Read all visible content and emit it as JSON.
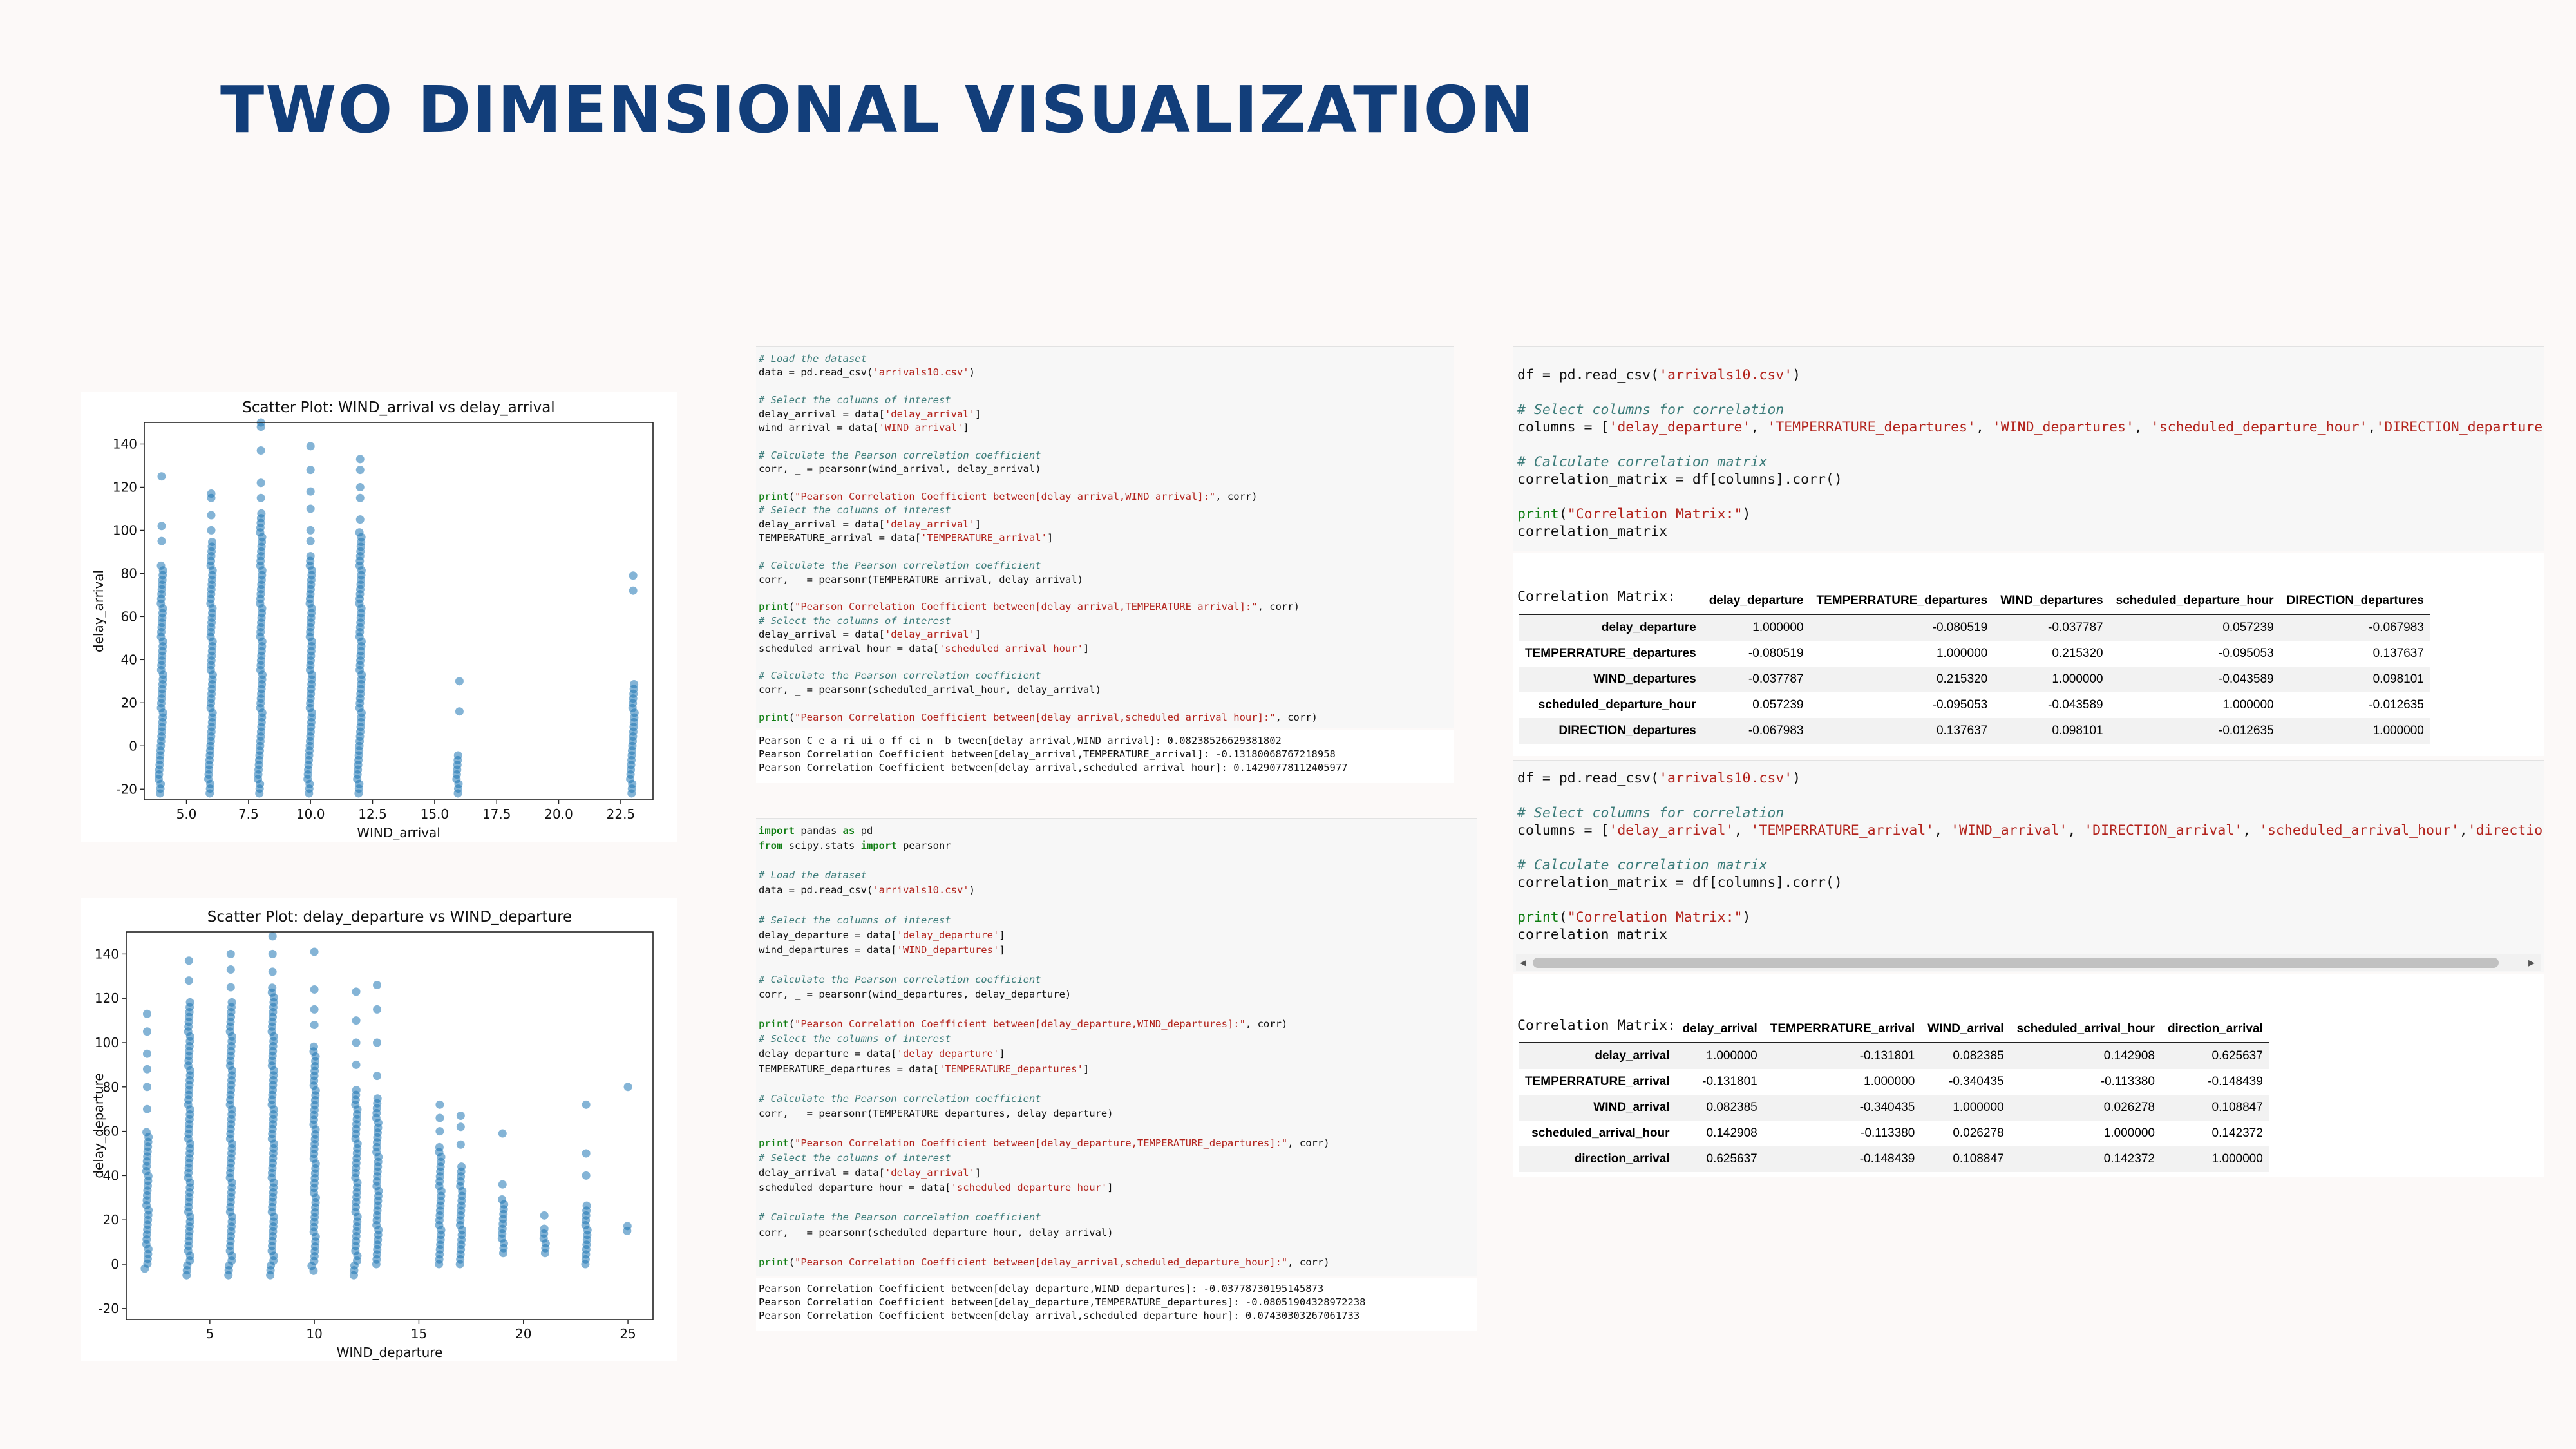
{
  "slide": {
    "title": "TWO DIMENSIONAL VISUALIZATION"
  },
  "colors": {
    "title": "#123e7a",
    "point": "#1f77b4",
    "comment": "#3c7c7a",
    "string": "#b3241d",
    "keyword": "#0f7d12"
  },
  "chart_data": [
    {
      "type": "scatter",
      "title": "Scatter Plot: WIND_arrival vs delay_arrival",
      "xlabel": "WIND_arrival",
      "ylabel": "delay_arrival",
      "xlim": [
        3.3,
        23.8
      ],
      "ylim": [
        -25,
        150
      ],
      "xticks": [
        "5.0",
        "7.5",
        "10.0",
        "12.5",
        "15.0",
        "17.5",
        "20.0",
        "22.5"
      ],
      "xtick_values": [
        5,
        7.5,
        10,
        12.5,
        15,
        17.5,
        20,
        22.5
      ],
      "yticks": [
        "-20",
        "0",
        "20",
        "40",
        "60",
        "80",
        "100",
        "120",
        "140"
      ],
      "ytick_values": [
        -20,
        0,
        20,
        40,
        60,
        80,
        100,
        120,
        140
      ],
      "columns": [
        {
          "x": 4,
          "ymin": -22,
          "ymax": 85,
          "extra": [
            95,
            102,
            125
          ]
        },
        {
          "x": 6,
          "ymin": -22,
          "ymax": 95,
          "extra": [
            100,
            107,
            115,
            117
          ]
        },
        {
          "x": 8,
          "ymin": -22,
          "ymax": 110,
          "extra": [
            115,
            122,
            137,
            148,
            150
          ]
        },
        {
          "x": 10,
          "ymin": -22,
          "ymax": 90,
          "extra": [
            95,
            100,
            110,
            118,
            128,
            139
          ]
        },
        {
          "x": 12,
          "ymin": -22,
          "ymax": 100,
          "extra": [
            105,
            115,
            120,
            128,
            133
          ]
        },
        {
          "x": 16,
          "ymin": -22,
          "ymax": -3,
          "extra": [
            16,
            30
          ]
        },
        {
          "x": 23,
          "ymin": -22,
          "ymax": 30,
          "extra": [
            72,
            79
          ]
        }
      ]
    },
    {
      "type": "scatter",
      "title": "Scatter Plot: delay_departure vs WIND_departure",
      "xlabel": "WIND_departure",
      "ylabel": "delay_departure",
      "xlim": [
        1,
        26.2
      ],
      "ylim": [
        -25,
        150
      ],
      "xticks": [
        "5",
        "10",
        "15",
        "20",
        "25"
      ],
      "xtick_values": [
        5,
        10,
        15,
        20,
        25
      ],
      "yticks": [
        "-20",
        "0",
        "20",
        "40",
        "60",
        "80",
        "100",
        "120",
        "140"
      ],
      "ytick_values": [
        -20,
        0,
        20,
        40,
        60,
        80,
        100,
        120,
        140
      ],
      "columns": [
        {
          "x": 2,
          "ymin": -2,
          "ymax": 60,
          "extra": [
            70,
            80,
            88,
            95,
            105,
            113
          ]
        },
        {
          "x": 4,
          "ymin": -5,
          "ymax": 120,
          "extra": [
            128,
            137
          ]
        },
        {
          "x": 6,
          "ymin": -5,
          "ymax": 120,
          "extra": [
            125,
            133,
            140
          ]
        },
        {
          "x": 8,
          "ymin": -5,
          "ymax": 125,
          "extra": [
            132,
            140,
            148
          ]
        },
        {
          "x": 10,
          "ymin": -3,
          "ymax": 100,
          "extra": [
            108,
            115,
            124,
            141
          ]
        },
        {
          "x": 12,
          "ymin": -5,
          "ymax": 80,
          "extra": [
            90,
            100,
            110,
            123
          ]
        },
        {
          "x": 13,
          "ymin": 0,
          "ymax": 75,
          "extra": [
            85,
            100,
            115,
            126
          ]
        },
        {
          "x": 16,
          "ymin": 0,
          "ymax": 55,
          "extra": [
            60,
            66,
            72
          ]
        },
        {
          "x": 17,
          "ymin": 0,
          "ymax": 45,
          "extra": [
            54,
            62,
            67
          ]
        },
        {
          "x": 19,
          "ymin": 5,
          "ymax": 30,
          "extra": [
            36,
            59
          ]
        },
        {
          "x": 21,
          "ymin": 5,
          "ymax": 18,
          "extra": [
            22
          ]
        },
        {
          "x": 23,
          "ymin": 0,
          "ymax": 28,
          "extra": [
            40,
            50,
            72
          ]
        },
        {
          "x": 25,
          "ymin": 15,
          "ymax": 18,
          "extra": [
            80
          ]
        }
      ]
    }
  ],
  "code_cell_1": {
    "lines": [
      [
        {
          "t": "# Load the dataset",
          "c": "cm"
        }
      ],
      [
        {
          "t": "data = pd.read_csv("
        },
        {
          "t": "'arrivals10.csv'",
          "c": "str"
        },
        {
          "t": ")"
        }
      ],
      [
        {
          "t": ""
        }
      ],
      [
        {
          "t": "# Select the columns of interest",
          "c": "cm"
        }
      ],
      [
        {
          "t": "delay_arrival = data["
        },
        {
          "t": "'delay_arrival'",
          "c": "str"
        },
        {
          "t": "]"
        }
      ],
      [
        {
          "t": "wind_arrival = data["
        },
        {
          "t": "'WIND_arrival'",
          "c": "str"
        },
        {
          "t": "]"
        }
      ],
      [
        {
          "t": ""
        }
      ],
      [
        {
          "t": "# Calculate the Pearson correlation coefficient",
          "c": "cm"
        }
      ],
      [
        {
          "t": "corr, _ = pearsonr(wind_arrival, delay_arrival)"
        }
      ],
      [
        {
          "t": ""
        }
      ],
      [
        {
          "t": "print",
          "c": "fn"
        },
        {
          "t": "("
        },
        {
          "t": "\"Pearson Correlation Coefficient between[delay_arrival,WIND_arrival]:\"",
          "c": "str"
        },
        {
          "t": ", corr)"
        }
      ],
      [
        {
          "t": "# Select the columns of interest",
          "c": "cm"
        }
      ],
      [
        {
          "t": "delay_arrival = data["
        },
        {
          "t": "'delay_arrival'",
          "c": "str"
        },
        {
          "t": "]"
        }
      ],
      [
        {
          "t": "TEMPERATURE_arrival = data["
        },
        {
          "t": "'TEMPERATURE_arrival'",
          "c": "str"
        },
        {
          "t": "]"
        }
      ],
      [
        {
          "t": ""
        }
      ],
      [
        {
          "t": "# Calculate the Pearson correlation coefficient",
          "c": "cm"
        }
      ],
      [
        {
          "t": "corr, _ = pearsonr(TEMPERATURE_arrival, delay_arrival)"
        }
      ],
      [
        {
          "t": ""
        }
      ],
      [
        {
          "t": "print",
          "c": "fn"
        },
        {
          "t": "("
        },
        {
          "t": "\"Pearson Correlation Coefficient between[delay_arrival,TEMPERATURE_arrival]:\"",
          "c": "str"
        },
        {
          "t": ", corr)"
        }
      ],
      [
        {
          "t": "# Select the columns of interest",
          "c": "cm"
        }
      ],
      [
        {
          "t": "delay_arrival = data["
        },
        {
          "t": "'delay_arrival'",
          "c": "str"
        },
        {
          "t": "]"
        }
      ],
      [
        {
          "t": "scheduled_arrival_hour = data["
        },
        {
          "t": "'scheduled_arrival_hour'",
          "c": "str"
        },
        {
          "t": "]"
        }
      ],
      [
        {
          "t": ""
        }
      ],
      [
        {
          "t": "# Calculate the Pearson correlation coefficient",
          "c": "cm"
        }
      ],
      [
        {
          "t": "corr, _ = pearsonr(scheduled_arrival_hour, delay_arrival)"
        }
      ],
      [
        {
          "t": ""
        }
      ],
      [
        {
          "t": "print",
          "c": "fn"
        },
        {
          "t": "("
        },
        {
          "t": "\"Pearson Correlation Coefficient between[delay_arrival,scheduled_arrival_hour]:\"",
          "c": "str"
        },
        {
          "t": ", corr)"
        }
      ]
    ],
    "output": [
      "Pearson C e a ri ui o ff ci n  b tween[delay_arrival,WIND_arrival]: 0.08238526629381802",
      "Pearson Correlation Coefficient between[delay_arrival,TEMPERATURE_arrival]: -0.13180068767218958",
      "Pearson Correlation Coefficient between[delay_arrival,scheduled_arrival_hour]: 0.14290778112405977"
    ]
  },
  "code_cell_2": {
    "lines": [
      [
        {
          "t": "import",
          "c": "kw"
        },
        {
          "t": " pandas "
        },
        {
          "t": "as",
          "c": "kw"
        },
        {
          "t": " pd"
        }
      ],
      [
        {
          "t": "from",
          "c": "kw"
        },
        {
          "t": " scipy.stats "
        },
        {
          "t": "import",
          "c": "kw"
        },
        {
          "t": " pearsonr"
        }
      ],
      [
        {
          "t": ""
        }
      ],
      [
        {
          "t": "# Load the dataset",
          "c": "cm"
        }
      ],
      [
        {
          "t": "data = pd.read_csv("
        },
        {
          "t": "'arrivals10.csv'",
          "c": "str"
        },
        {
          "t": ")"
        }
      ],
      [
        {
          "t": ""
        }
      ],
      [
        {
          "t": "# Select the columns of interest",
          "c": "cm"
        }
      ],
      [
        {
          "t": "delay_departure = data["
        },
        {
          "t": "'delay_departure'",
          "c": "str"
        },
        {
          "t": "]"
        }
      ],
      [
        {
          "t": "wind_departures = data["
        },
        {
          "t": "'WIND_departures'",
          "c": "str"
        },
        {
          "t": "]"
        }
      ],
      [
        {
          "t": ""
        }
      ],
      [
        {
          "t": "# Calculate the Pearson correlation coefficient",
          "c": "cm"
        }
      ],
      [
        {
          "t": "corr, _ = pearsonr(wind_departures, delay_departure)"
        }
      ],
      [
        {
          "t": ""
        }
      ],
      [
        {
          "t": "print",
          "c": "fn"
        },
        {
          "t": "("
        },
        {
          "t": "\"Pearson Correlation Coefficient between[delay_departure,WIND_departures]:\"",
          "c": "str"
        },
        {
          "t": ", corr)"
        }
      ],
      [
        {
          "t": "# Select the columns of interest",
          "c": "cm"
        }
      ],
      [
        {
          "t": "delay_departure = data["
        },
        {
          "t": "'delay_departure'",
          "c": "str"
        },
        {
          "t": "]"
        }
      ],
      [
        {
          "t": "TEMPERATURE_departures = data["
        },
        {
          "t": "'TEMPERATURE_departures'",
          "c": "str"
        },
        {
          "t": "]"
        }
      ],
      [
        {
          "t": ""
        }
      ],
      [
        {
          "t": "# Calculate the Pearson correlation coefficient",
          "c": "cm"
        }
      ],
      [
        {
          "t": "corr, _ = pearsonr(TEMPERATURE_departures, delay_departure)"
        }
      ],
      [
        {
          "t": ""
        }
      ],
      [
        {
          "t": "print",
          "c": "fn"
        },
        {
          "t": "("
        },
        {
          "t": "\"Pearson Correlation Coefficient between[delay_departure,TEMPERATURE_departures]:\"",
          "c": "str"
        },
        {
          "t": ", corr)"
        }
      ],
      [
        {
          "t": "# Select the columns of interest",
          "c": "cm"
        }
      ],
      [
        {
          "t": "delay_arrival = data["
        },
        {
          "t": "'delay_arrival'",
          "c": "str"
        },
        {
          "t": "]"
        }
      ],
      [
        {
          "t": "scheduled_departure_hour = data["
        },
        {
          "t": "'scheduled_departure_hour'",
          "c": "str"
        },
        {
          "t": "]"
        }
      ],
      [
        {
          "t": ""
        }
      ],
      [
        {
          "t": "# Calculate the Pearson correlation coefficient",
          "c": "cm"
        }
      ],
      [
        {
          "t": "corr, _ = pearsonr(scheduled_departure_hour, delay_arrival)"
        }
      ],
      [
        {
          "t": ""
        }
      ],
      [
        {
          "t": "print",
          "c": "fn"
        },
        {
          "t": "("
        },
        {
          "t": "\"Pearson Correlation Coefficient between[delay_arrival,scheduled_departure_hour]:\"",
          "c": "str"
        },
        {
          "t": ", corr)"
        }
      ]
    ],
    "output": [
      "Pearson Correlation Coefficient between[delay_departure,WIND_departures]: -0.03778730195145873",
      "Pearson Correlation Coefficient between[delay_departure,TEMPERATURE_departures]: -0.08051904328972238",
      "Pearson Correlation Coefficient between[delay_arrival,scheduled_departure_hour]: 0.07430303267061733"
    ]
  },
  "code_cell_3": {
    "lines": [
      [
        {
          "t": "df = pd.read_csv("
        },
        {
          "t": "'arrivals10.csv'",
          "c": "str"
        },
        {
          "t": ")"
        }
      ],
      [
        {
          "t": ""
        }
      ],
      [
        {
          "t": "# Select columns for correlation",
          "c": "cm"
        }
      ],
      [
        {
          "t": "columns = ["
        },
        {
          "t": "'delay_departure'",
          "c": "str"
        },
        {
          "t": ", "
        },
        {
          "t": "'TEMPERRATURE_departures'",
          "c": "str"
        },
        {
          "t": ", "
        },
        {
          "t": "'WIND_departures'",
          "c": "str"
        },
        {
          "t": ", "
        },
        {
          "t": "'scheduled_departure_hour'",
          "c": "str"
        },
        {
          "t": ","
        },
        {
          "t": "'DIRECTION_departures'",
          "c": "str"
        },
        {
          "t": "]"
        }
      ],
      [
        {
          "t": ""
        }
      ],
      [
        {
          "t": "# Calculate correlation matrix",
          "c": "cm"
        }
      ],
      [
        {
          "t": "correlation_matrix = df[columns].corr()"
        }
      ],
      [
        {
          "t": ""
        }
      ],
      [
        {
          "t": "print",
          "c": "fn"
        },
        {
          "t": "("
        },
        {
          "t": "\"Correlation Matrix:\"",
          "c": "str"
        },
        {
          "t": ")"
        }
      ],
      [
        {
          "t": "correlation_matrix"
        }
      ]
    ],
    "output_label": "Correlation Matrix:"
  },
  "table_1": {
    "headers": [
      "",
      "delay_departure",
      "TEMPERRATURE_departures",
      "WIND_departures",
      "scheduled_departure_hour",
      "DIRECTION_departures"
    ],
    "rows": [
      [
        "delay_departure",
        "1.000000",
        "-0.080519",
        "-0.037787",
        "0.057239",
        "-0.067983"
      ],
      [
        "TEMPERRATURE_departures",
        "-0.080519",
        "1.000000",
        "0.215320",
        "-0.095053",
        "0.137637"
      ],
      [
        "WIND_departures",
        "-0.037787",
        "0.215320",
        "1.000000",
        "-0.043589",
        "0.098101"
      ],
      [
        "scheduled_departure_hour",
        "0.057239",
        "-0.095053",
        "-0.043589",
        "1.000000",
        "-0.012635"
      ],
      [
        "DIRECTION_departures",
        "-0.067983",
        "0.137637",
        "0.098101",
        "-0.012635",
        "1.000000"
      ]
    ]
  },
  "code_cell_4": {
    "lines": [
      [
        {
          "t": "df = pd.read_csv("
        },
        {
          "t": "'arrivals10.csv'",
          "c": "str"
        },
        {
          "t": ")"
        }
      ],
      [
        {
          "t": ""
        }
      ],
      [
        {
          "t": "# Select columns for correlation",
          "c": "cm"
        }
      ],
      [
        {
          "t": "columns = ["
        },
        {
          "t": "'delay_arrival'",
          "c": "str"
        },
        {
          "t": ", "
        },
        {
          "t": "'TEMPERRATURE_arrival'",
          "c": "str"
        },
        {
          "t": ", "
        },
        {
          "t": "'WIND_arrival'",
          "c": "str"
        },
        {
          "t": ", "
        },
        {
          "t": "'DIRECTION_arrival'",
          "c": "str"
        },
        {
          "t": ", "
        },
        {
          "t": "'scheduled_arrival_hour'",
          "c": "str"
        },
        {
          "t": ","
        },
        {
          "t": "'direction_arri",
          "c": "str"
        }
      ],
      [
        {
          "t": ""
        }
      ],
      [
        {
          "t": "# Calculate correlation matrix",
          "c": "cm"
        }
      ],
      [
        {
          "t": "correlation_matrix = df[columns].corr()"
        }
      ],
      [
        {
          "t": ""
        }
      ],
      [
        {
          "t": "print",
          "c": "fn"
        },
        {
          "t": "("
        },
        {
          "t": "\"Correlation Matrix:\"",
          "c": "str"
        },
        {
          "t": ")"
        }
      ],
      [
        {
          "t": "correlation_matrix"
        }
      ]
    ],
    "output_label": "Correlation Matrix:"
  },
  "table_2": {
    "headers": [
      "",
      "delay_arrival",
      "TEMPERRATURE_arrival",
      "WIND_arrival",
      "scheduled_arrival_hour",
      "direction_arrival"
    ],
    "rows": [
      [
        "delay_arrival",
        "1.000000",
        "-0.131801",
        "0.082385",
        "0.142908",
        "0.625637"
      ],
      [
        "TEMPERRATURE_arrival",
        "-0.131801",
        "1.000000",
        "-0.340435",
        "-0.113380",
        "-0.148439"
      ],
      [
        "WIND_arrival",
        "0.082385",
        "-0.340435",
        "1.000000",
        "0.026278",
        "0.108847"
      ],
      [
        "scheduled_arrival_hour",
        "0.142908",
        "-0.113380",
        "0.026278",
        "1.000000",
        "0.142372"
      ],
      [
        "direction_arrival",
        "0.625637",
        "-0.148439",
        "0.108847",
        "0.142372",
        "1.000000"
      ]
    ]
  }
}
